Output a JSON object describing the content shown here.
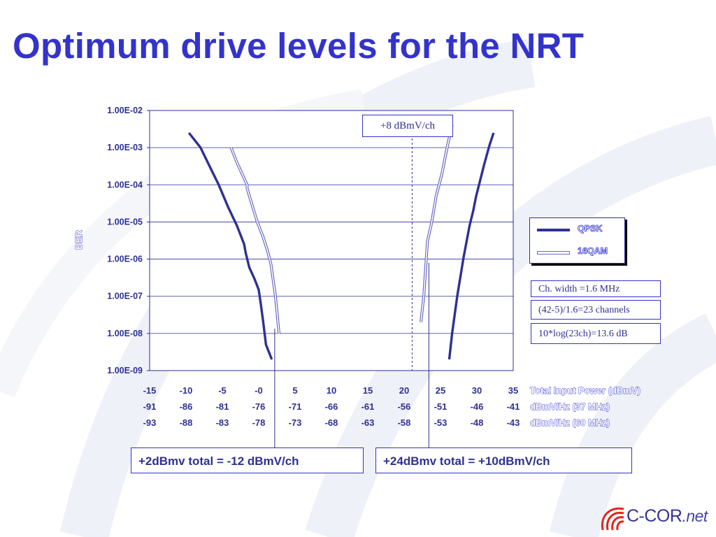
{
  "title": "Optimum drive levels for the NRT",
  "chart_data": {
    "type": "line",
    "ylabel": "BER",
    "y_scale": "log",
    "ylim": [
      1e-09,
      0.01
    ],
    "y_ticks": [
      "1.00E-02",
      "1.00E-03",
      "1.00E-04",
      "1.00E-05",
      "1.00E-06",
      "1.00E-07",
      "1.00E-08",
      "1.00E-09"
    ],
    "xlim": [
      -15,
      35
    ],
    "x_axes": [
      {
        "label": "Total Input Power (dBmV)",
        "ticks": [
          "-15",
          "-10",
          "-5",
          "-0",
          "5",
          "10",
          "15",
          "20",
          "25",
          "30",
          "35"
        ]
      },
      {
        "label": "dBmV/Hz (37 MHz)",
        "ticks": [
          "-91",
          "-86",
          "-81",
          "-76",
          "-71",
          "-66",
          "-61",
          "-56",
          "-51",
          "-46",
          "-41"
        ]
      },
      {
        "label": "dBmV/Hz (60 MHz)",
        "ticks": [
          "-93",
          "-88",
          "-83",
          "-78",
          "-73",
          "-68",
          "-63",
          "-58",
          "-53",
          "-48",
          "-43"
        ]
      }
    ],
    "series": [
      {
        "name": "QPSK",
        "color": "#2e3192",
        "style": "solid",
        "segments": [
          [
            [
              -9.6,
              0.0025
            ],
            [
              -8,
              0.001
            ],
            [
              -6.5,
              0.00025
            ],
            [
              -5.5,
              0.0001
            ],
            [
              -4.2,
              2.5e-05
            ],
            [
              -3,
              8e-06
            ],
            [
              -2,
              2.5e-06
            ],
            [
              -1.8,
              1.5e-06
            ],
            [
              -1.3,
              6e-07
            ],
            [
              -0.6,
              3e-07
            ],
            [
              0,
              1.5e-07
            ],
            [
              0.3,
              6e-08
            ],
            [
              0.6,
              2.2e-08
            ],
            [
              1,
              5e-09
            ],
            [
              1.8,
              2e-09
            ]
          ]
        ]
      },
      {
        "name": "QPSK",
        "color": "#2e3192",
        "style": "solid",
        "segments": [
          [
            [
              26.2,
              2e-09
            ],
            [
              26.6,
              1e-08
            ],
            [
              27.3,
              1e-07
            ],
            [
              28.2,
              1.2e-06
            ],
            [
              29,
              8e-06
            ],
            [
              29.5,
              2e-05
            ],
            [
              29.9,
              5e-05
            ],
            [
              30.3,
              0.0001
            ],
            [
              31,
              0.00035
            ],
            [
              31.7,
              0.0011
            ],
            [
              32.3,
              0.0025
            ]
          ]
        ]
      },
      {
        "name": "16QAM",
        "color": "#6b6bc4",
        "style": "double",
        "segments": [
          [
            [
              -3.8,
              0.001
            ],
            [
              -3,
              0.0004
            ],
            [
              -1.6,
              0.0001
            ],
            [
              -1.6,
              8e-05
            ],
            [
              -0.2,
              1e-05
            ],
            [
              0.6,
              4e-06
            ],
            [
              1.2,
              1.7e-06
            ],
            [
              1.7,
              7e-07
            ],
            [
              2.3,
              1e-07
            ],
            [
              2.8,
              1e-08
            ]
          ],
          [
            [
              22.3,
              2e-08
            ],
            [
              22.7,
              1e-07
            ],
            [
              23.2,
              3e-06
            ],
            [
              23.8,
              1e-05
            ],
            [
              24.4,
              5e-05
            ],
            [
              25.2,
              0.0002
            ],
            [
              25.9,
              0.001
            ],
            [
              26.6,
              0.004
            ]
          ]
        ]
      }
    ],
    "annotations": {
      "line_label": "+8 dBmV/ch",
      "dashed_x": 21.1,
      "leader_lines_x": [
        2.2,
        23.4
      ]
    },
    "legend": {
      "placement": "right",
      "entries": [
        "QPSK",
        "16QAM"
      ]
    },
    "grid": "horizontal"
  },
  "notes": [
    "Ch. width =1.6 MHz",
    "(42-5)/1.6=23 channels",
    "10*log(23ch)=13.6 dB"
  ],
  "footer": {
    "left": "+2dBmv total = -12 dBmV/ch",
    "right": "+24dBmv total = +10dBmV/ch"
  },
  "logo": {
    "name": "C-COR",
    "suffix": ".net"
  },
  "colors": {
    "title": "#3333cc",
    "text": "#2e3192",
    "qpsk": "#2e3192",
    "qam16": "#6b6bc4",
    "logo_red": "#e2231a"
  }
}
